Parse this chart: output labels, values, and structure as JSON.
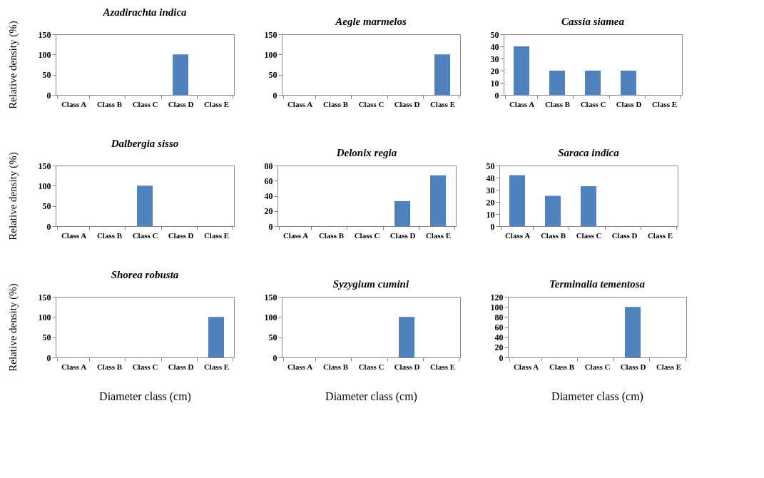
{
  "chart_data": [
    {
      "type": "bar",
      "title": "Azadirachta indica",
      "ylabel": "Relative density (%)",
      "categories": [
        "Class A",
        "Class B",
        "Class C",
        "Class D",
        "Class E"
      ],
      "values": [
        0,
        0,
        0,
        100,
        0
      ],
      "color": "#4f81bd",
      "ylim": [
        0,
        150
      ],
      "yticks": [
        0,
        50,
        100,
        150
      ]
    },
    {
      "type": "bar",
      "title": "Aegle marmelos",
      "categories": [
        "Class A",
        "Class B",
        "Class C",
        "Class D",
        "Class E"
      ],
      "values": [
        0,
        0,
        0,
        0,
        100
      ],
      "color": "#4f81bd",
      "ylim": [
        0,
        150
      ],
      "yticks": [
        0,
        50,
        100,
        150
      ]
    },
    {
      "type": "bar",
      "title": "Cassia siamea",
      "categories": [
        "Class A",
        "Class B",
        "Class C",
        "Class D",
        "Class E"
      ],
      "values": [
        40,
        20,
        20,
        20,
        0
      ],
      "color": "#4f81bd",
      "ylim": [
        0,
        50
      ],
      "yticks": [
        0,
        10,
        20,
        30,
        40,
        50
      ]
    },
    {
      "type": "bar",
      "title": "Dalbergia sisso",
      "ylabel": "Relative density (%)",
      "categories": [
        "Class A",
        "Class B",
        "Class C",
        "Class D",
        "Class E"
      ],
      "values": [
        0,
        0,
        100,
        0,
        0
      ],
      "color": "#4f81bd",
      "ylim": [
        0,
        150
      ],
      "yticks": [
        0,
        50,
        100,
        150
      ]
    },
    {
      "type": "bar",
      "title": "Delonix regia",
      "categories": [
        "Class A",
        "Class B",
        "Class C",
        "Class D",
        "Class E"
      ],
      "values": [
        0,
        0,
        0,
        33,
        67
      ],
      "color": "#4f81bd",
      "ylim": [
        0,
        80
      ],
      "yticks": [
        0,
        20,
        40,
        60,
        80
      ]
    },
    {
      "type": "bar",
      "title": "Saraca indica",
      "categories": [
        "Class A",
        "Class B",
        "Class C",
        "Class D",
        "Class E"
      ],
      "values": [
        42,
        25,
        33,
        0,
        0
      ],
      "color": "#4f81bd",
      "ylim": [
        0,
        50
      ],
      "yticks": [
        0,
        10,
        20,
        30,
        40,
        50
      ]
    },
    {
      "type": "bar",
      "title": "Shorea robusta",
      "ylabel": "Relative density (%)",
      "xlabel": "Diameter class (cm)",
      "categories": [
        "Class A",
        "Class B",
        "Class C",
        "Class D",
        "Class E"
      ],
      "values": [
        0,
        0,
        0,
        0,
        100
      ],
      "color": "#4f81bd",
      "ylim": [
        0,
        150
      ],
      "yticks": [
        0,
        50,
        100,
        150
      ]
    },
    {
      "type": "bar",
      "title": "Syzygium cumini",
      "xlabel": "Diameter class (cm)",
      "categories": [
        "Class A",
        "Class B",
        "Class C",
        "Class D",
        "Class E"
      ],
      "values": [
        0,
        0,
        0,
        100,
        0
      ],
      "color": "#4f81bd",
      "ylim": [
        0,
        150
      ],
      "yticks": [
        0,
        50,
        100,
        150
      ]
    },
    {
      "type": "bar",
      "title": "Terminalia tementosa",
      "xlabel": "Diameter class (cm)",
      "categories": [
        "Class A",
        "Class B",
        "Class C",
        "Class D",
        "Class E"
      ],
      "values": [
        0,
        0,
        0,
        100,
        0
      ],
      "color": "#4f81bd",
      "ylim": [
        0,
        120
      ],
      "yticks": [
        0,
        20,
        40,
        60,
        80,
        100,
        120
      ]
    }
  ]
}
